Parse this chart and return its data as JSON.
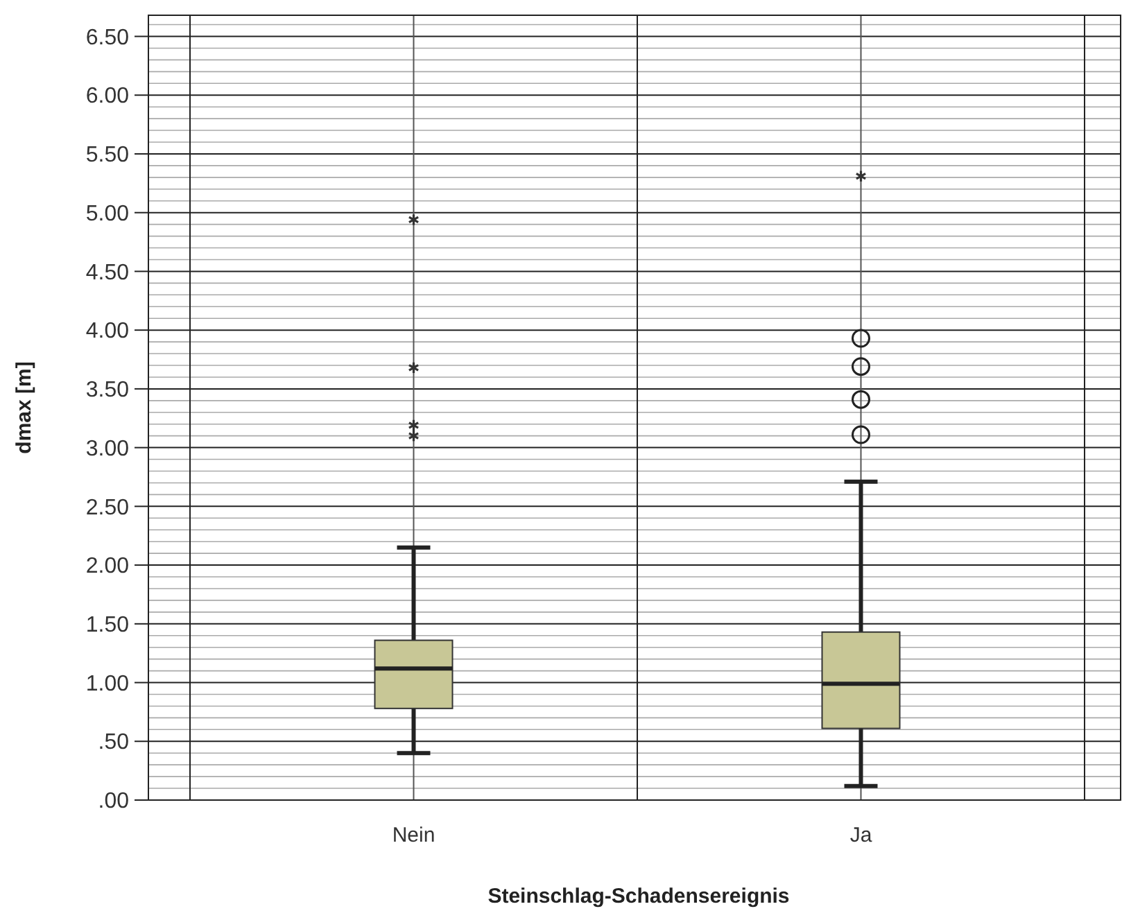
{
  "chart_data": {
    "type": "box",
    "xlabel": "Steinschlag-Schadensereignis",
    "ylabel": "dmax [m]",
    "categories": [
      "Nein",
      "Ja"
    ],
    "ylim": [
      0,
      6.68
    ],
    "yticks": [
      {
        "value": 0,
        "label": ".00"
      },
      {
        "value": 0.1,
        "label": null
      },
      {
        "value": 0.2,
        "label": null
      },
      {
        "value": 0.3,
        "label": null
      },
      {
        "value": 0.4,
        "label": null
      },
      {
        "value": 0.5,
        "label": ".50"
      },
      {
        "value": 0.6,
        "label": null
      },
      {
        "value": 0.7,
        "label": null
      },
      {
        "value": 0.8,
        "label": null
      },
      {
        "value": 0.9,
        "label": null
      },
      {
        "value": 1,
        "label": "1.00"
      },
      {
        "value": 1.1,
        "label": null
      },
      {
        "value": 1.2,
        "label": null
      },
      {
        "value": 1.3,
        "label": null
      },
      {
        "value": 1.4,
        "label": null
      },
      {
        "value": 1.5,
        "label": "1.50"
      },
      {
        "value": 1.6,
        "label": null
      },
      {
        "value": 1.7,
        "label": null
      },
      {
        "value": 1.8,
        "label": null
      },
      {
        "value": 1.9,
        "label": null
      },
      {
        "value": 2,
        "label": "2.00"
      },
      {
        "value": 2.1,
        "label": null
      },
      {
        "value": 2.2,
        "label": null
      },
      {
        "value": 2.3,
        "label": null
      },
      {
        "value": 2.4,
        "label": null
      },
      {
        "value": 2.5,
        "label": "2.50"
      },
      {
        "value": 2.6,
        "label": null
      },
      {
        "value": 2.7,
        "label": null
      },
      {
        "value": 2.8,
        "label": null
      },
      {
        "value": 2.9,
        "label": null
      },
      {
        "value": 3,
        "label": "3.00"
      },
      {
        "value": 3.1,
        "label": null
      },
      {
        "value": 3.2,
        "label": null
      },
      {
        "value": 3.3,
        "label": null
      },
      {
        "value": 3.4,
        "label": null
      },
      {
        "value": 3.5,
        "label": "3.50"
      },
      {
        "value": 3.6,
        "label": null
      },
      {
        "value": 3.7,
        "label": null
      },
      {
        "value": 3.8,
        "label": null
      },
      {
        "value": 3.9,
        "label": null
      },
      {
        "value": 4,
        "label": "4.00"
      },
      {
        "value": 4.1,
        "label": null
      },
      {
        "value": 4.2,
        "label": null
      },
      {
        "value": 4.3,
        "label": null
      },
      {
        "value": 4.4,
        "label": null
      },
      {
        "value": 4.5,
        "label": "4.50"
      },
      {
        "value": 4.6,
        "label": null
      },
      {
        "value": 4.7,
        "label": null
      },
      {
        "value": 4.8,
        "label": null
      },
      {
        "value": 4.9,
        "label": null
      },
      {
        "value": 5,
        "label": "5.00"
      },
      {
        "value": 5.1,
        "label": null
      },
      {
        "value": 5.2,
        "label": null
      },
      {
        "value": 5.3,
        "label": null
      },
      {
        "value": 5.4,
        "label": null
      },
      {
        "value": 5.5,
        "label": "5.50"
      },
      {
        "value": 5.6,
        "label": null
      },
      {
        "value": 5.7,
        "label": null
      },
      {
        "value": 5.8,
        "label": null
      },
      {
        "value": 5.9,
        "label": null
      },
      {
        "value": 6,
        "label": "6.00"
      },
      {
        "value": 6.1,
        "label": null
      },
      {
        "value": 6.2,
        "label": null
      },
      {
        "value": 6.3,
        "label": null
      },
      {
        "value": 6.4,
        "label": null
      },
      {
        "value": 6.5,
        "label": "6.50"
      },
      {
        "value": 6.6,
        "label": null
      }
    ],
    "grid": true,
    "series": [
      {
        "color": "#c8c796",
        "boxes": [
          {
            "low": 0.4,
            "q1": 0.78,
            "median": 1.12,
            "q3": 1.36,
            "high": 2.15
          },
          {
            "low": 0.12,
            "q1": 0.61,
            "median": 0.99,
            "q3": 1.43,
            "high": 2.71,
            "outliers": [
              3.93,
              3.69,
              3.41,
              3.11
            ]
          }
        ]
      },
      {
        "type": "scatter",
        "marker": "cross",
        "color": "#333333",
        "x": [
          "Nein",
          "Nein",
          "Nein",
          "Nein",
          "Ja"
        ],
        "values": [
          4.94,
          3.68,
          3.19,
          3.1,
          5.31
        ]
      }
    ]
  }
}
